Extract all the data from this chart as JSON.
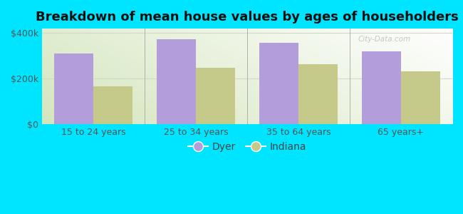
{
  "title": "Breakdown of mean house values by ages of householders",
  "categories": [
    "15 to 24 years",
    "25 to 34 years",
    "35 to 64 years",
    "65 years+"
  ],
  "dyer_values": [
    310000,
    372000,
    358000,
    320000
  ],
  "indiana_values": [
    168000,
    248000,
    263000,
    232000
  ],
  "dyer_color": "#b39ddb",
  "indiana_color": "#c5c98a",
  "background_color": "#00e5ff",
  "ylim": [
    0,
    420000
  ],
  "yticks": [
    0,
    200000,
    400000
  ],
  "ytick_labels": [
    "$0",
    "$200k",
    "$400k"
  ],
  "bar_width": 0.38,
  "title_fontsize": 13,
  "tick_fontsize": 9,
  "legend_fontsize": 10,
  "watermark": "City-Data.com",
  "separator_color": "#b0b0b0",
  "grid_color": "#d0d8c8"
}
